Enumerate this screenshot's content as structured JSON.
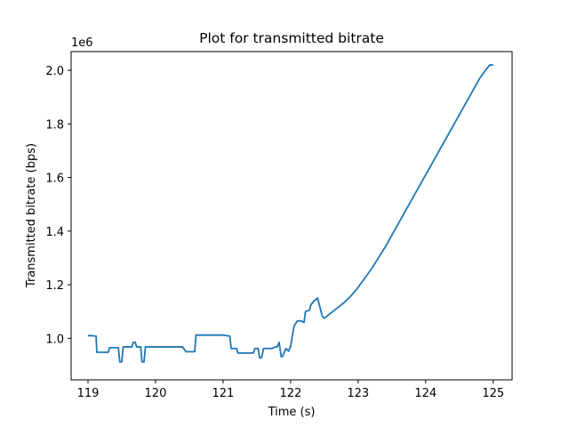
{
  "chart_data": {
    "type": "line",
    "title": "Plot for transmitted bitrate",
    "xlabel": "Time (s)",
    "ylabel": "Transmitted bitrate (bps)",
    "y_offset_label": "1e6",
    "xlim": [
      118.75,
      125.28
    ],
    "ylim": [
      0.845,
      2.07
    ],
    "y_scale_note": "values in units of 1e6 bps",
    "x_ticks": [
      119,
      120,
      121,
      122,
      123,
      124,
      125
    ],
    "x_tick_labels": [
      "119",
      "120",
      "121",
      "122",
      "123",
      "124",
      "125"
    ],
    "y_ticks": [
      1.0,
      1.2,
      1.4,
      1.6,
      1.8,
      2.0
    ],
    "y_tick_labels": [
      "1.0",
      "1.2",
      "1.4",
      "1.6",
      "1.8",
      "2.0"
    ],
    "grid": false,
    "legend": "none",
    "series": [
      {
        "color": "#1f77b4",
        "x": [
          119.0,
          119.05,
          119.12,
          119.13,
          119.3,
          119.32,
          119.45,
          119.47,
          119.5,
          119.52,
          119.55,
          119.57,
          119.65,
          119.67,
          119.7,
          119.72,
          119.78,
          119.8,
          119.83,
          119.85,
          120.0,
          120.4,
          120.45,
          120.58,
          120.6,
          120.8,
          121.0,
          121.1,
          121.12,
          121.2,
          121.22,
          121.4,
          121.45,
          121.47,
          121.52,
          121.54,
          121.57,
          121.6,
          121.62,
          121.7,
          121.72,
          121.78,
          121.8,
          121.83,
          121.86,
          121.88,
          121.93,
          121.97,
          122.0,
          122.05,
          122.1,
          122.15,
          122.2,
          122.22,
          122.28,
          122.3,
          122.35,
          122.4,
          122.47,
          122.5,
          122.6,
          122.7,
          122.8,
          122.9,
          123.0,
          123.1,
          123.2,
          123.3,
          123.4,
          123.5,
          123.6,
          123.7,
          123.8,
          123.9,
          124.0,
          124.1,
          124.2,
          124.3,
          124.4,
          124.5,
          124.6,
          124.7,
          124.8,
          124.9,
          124.95,
          125.0
        ],
        "y": [
          1.01,
          1.01,
          1.008,
          0.948,
          0.948,
          0.965,
          0.965,
          0.912,
          0.912,
          0.968,
          0.968,
          0.968,
          0.968,
          0.985,
          0.985,
          0.968,
          0.968,
          0.912,
          0.912,
          0.968,
          0.968,
          0.968,
          0.95,
          0.95,
          1.012,
          1.012,
          1.012,
          1.008,
          0.962,
          0.962,
          0.945,
          0.945,
          0.945,
          0.962,
          0.962,
          0.928,
          0.928,
          0.962,
          0.962,
          0.962,
          0.962,
          0.968,
          0.968,
          0.985,
          0.932,
          0.932,
          0.962,
          0.952,
          0.97,
          1.045,
          1.065,
          1.065,
          1.06,
          1.1,
          1.105,
          1.125,
          1.14,
          1.15,
          1.082,
          1.075,
          1.095,
          1.115,
          1.135,
          1.16,
          1.19,
          1.225,
          1.26,
          1.3,
          1.34,
          1.385,
          1.43,
          1.475,
          1.52,
          1.565,
          1.61,
          1.655,
          1.7,
          1.745,
          1.79,
          1.835,
          1.88,
          1.925,
          1.97,
          2.005,
          2.02,
          2.02
        ]
      }
    ]
  }
}
